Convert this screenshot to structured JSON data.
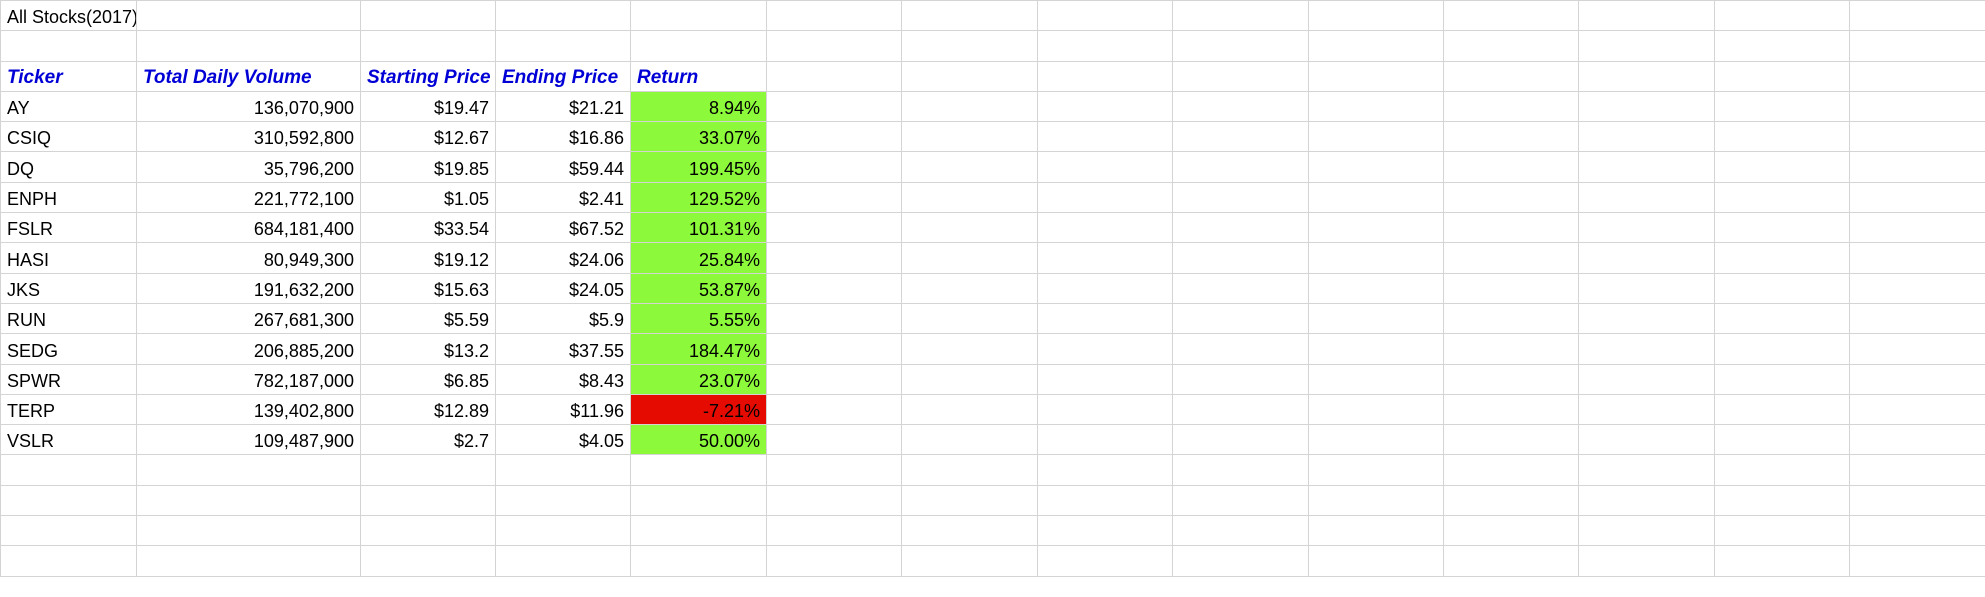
{
  "sheet": {
    "title": "All Stocks(2017)",
    "headers": {
      "ticker": "Ticker",
      "volume": "Total Daily Volume",
      "start": "Starting Price",
      "end": "Ending Price",
      "return": "Return"
    },
    "rows": [
      {
        "ticker": "AY",
        "volume": "136,070,900",
        "start": "$19.47",
        "end": "$21.21",
        "return": "8.94%",
        "status": "positive"
      },
      {
        "ticker": "CSIQ",
        "volume": "310,592,800",
        "start": "$12.67",
        "end": "$16.86",
        "return": "33.07%",
        "status": "positive"
      },
      {
        "ticker": "DQ",
        "volume": "35,796,200",
        "start": "$19.85",
        "end": "$59.44",
        "return": "199.45%",
        "status": "positive"
      },
      {
        "ticker": "ENPH",
        "volume": "221,772,100",
        "start": "$1.05",
        "end": "$2.41",
        "return": "129.52%",
        "status": "positive"
      },
      {
        "ticker": "FSLR",
        "volume": "684,181,400",
        "start": "$33.54",
        "end": "$67.52",
        "return": "101.31%",
        "status": "positive"
      },
      {
        "ticker": "HASI",
        "volume": "80,949,300",
        "start": "$19.12",
        "end": "$24.06",
        "return": "25.84%",
        "status": "positive"
      },
      {
        "ticker": "JKS",
        "volume": "191,632,200",
        "start": "$15.63",
        "end": "$24.05",
        "return": "53.87%",
        "status": "positive"
      },
      {
        "ticker": "RUN",
        "volume": "267,681,300",
        "start": "$5.59",
        "end": "$5.9",
        "return": "5.55%",
        "status": "positive"
      },
      {
        "ticker": "SEDG",
        "volume": "206,885,200",
        "start": "$13.2",
        "end": "$37.55",
        "return": "184.47%",
        "status": "positive"
      },
      {
        "ticker": "SPWR",
        "volume": "782,187,000",
        "start": "$6.85",
        "end": "$8.43",
        "return": "23.07%",
        "status": "positive"
      },
      {
        "ticker": "TERP",
        "volume": "139,402,800",
        "start": "$12.89",
        "end": "$11.96",
        "return": "-7.21%",
        "status": "negative"
      },
      {
        "ticker": "VSLR",
        "volume": "109,487,900",
        "start": "$2.7",
        "end": "$4.05",
        "return": "50.00%",
        "status": "positive"
      }
    ]
  },
  "colors": {
    "header_text": "#0000d6",
    "positive_fill": "#8cf93b",
    "negative_fill": "#e60b00",
    "gridline": "#d4d4d4"
  }
}
